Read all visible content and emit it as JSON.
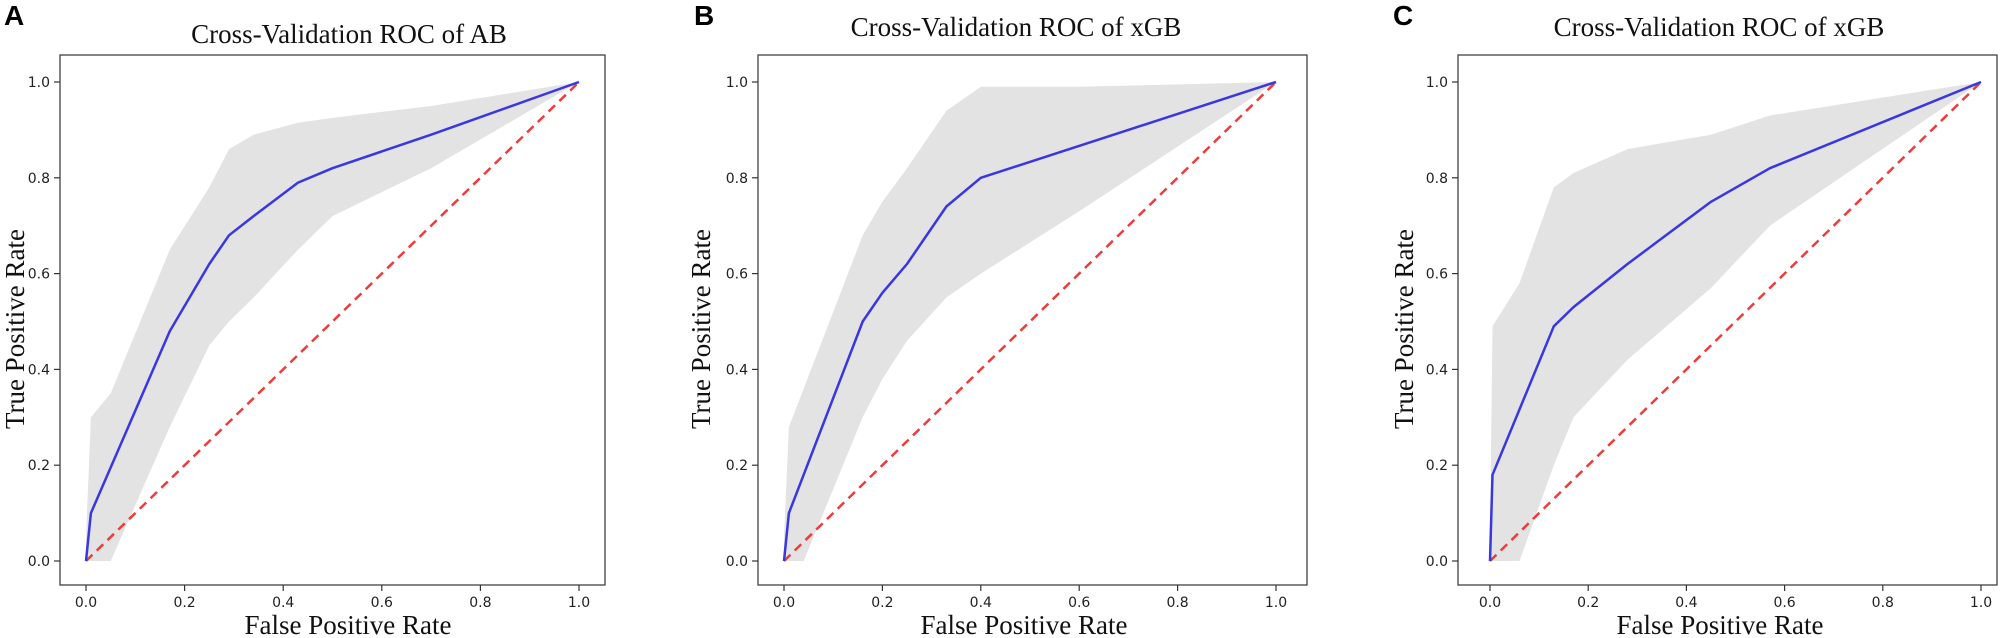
{
  "colors": {
    "mean_roc": "#3a36e0",
    "chance_line": "#ee3b3b",
    "band": "#e3e3e3"
  },
  "chart_data": [
    {
      "type": "line",
      "panel": "A",
      "title": "Cross-Validation ROC of AB",
      "xlabel": "False Positive Rate",
      "ylabel": "True Positive Rate",
      "xlim": [
        0,
        1
      ],
      "ylim": [
        0,
        1
      ],
      "xticks": [
        "0.0",
        "0.2",
        "0.4",
        "0.6",
        "0.8",
        "1.0"
      ],
      "yticks": [
        "0.0",
        "0.2",
        "0.4",
        "0.6",
        "0.8",
        "1.0"
      ],
      "series": [
        {
          "name": "mean ROC",
          "x": [
            0,
            0.01,
            0.17,
            0.25,
            0.29,
            0.34,
            0.43,
            0.5,
            0.7,
            1.0
          ],
          "y": [
            0,
            0.1,
            0.48,
            0.62,
            0.68,
            0.72,
            0.79,
            0.82,
            0.89,
            1.0
          ]
        },
        {
          "name": "chance",
          "x": [
            0,
            1
          ],
          "y": [
            0,
            1
          ]
        }
      ],
      "band": {
        "x": [
          0,
          0.01,
          0.05,
          0.17,
          0.25,
          0.29,
          0.34,
          0.43,
          0.5,
          0.7,
          1.0
        ],
        "upper": [
          0.05,
          0.3,
          0.35,
          0.65,
          0.78,
          0.86,
          0.89,
          0.915,
          0.925,
          0.95,
          1.0
        ],
        "lower": [
          0,
          0,
          0,
          0.28,
          0.45,
          0.5,
          0.55,
          0.65,
          0.72,
          0.82,
          1.0
        ]
      }
    },
    {
      "type": "line",
      "panel": "B",
      "title": "Cross-Validation ROC of xGB",
      "xlabel": "False Positive Rate",
      "ylabel": "True Positive Rate",
      "xlim": [
        0,
        1
      ],
      "ylim": [
        0,
        1
      ],
      "xticks": [
        "0.0",
        "0.2",
        "0.4",
        "0.6",
        "0.8",
        "1.0"
      ],
      "yticks": [
        "0.0",
        "0.2",
        "0.4",
        "0.6",
        "0.8",
        "1.0"
      ],
      "series": [
        {
          "name": "mean ROC",
          "x": [
            0,
            0.01,
            0.16,
            0.2,
            0.25,
            0.33,
            0.4,
            1.0
          ],
          "y": [
            0,
            0.1,
            0.5,
            0.56,
            0.62,
            0.74,
            0.8,
            1.0
          ]
        },
        {
          "name": "chance",
          "x": [
            0,
            1
          ],
          "y": [
            0,
            1
          ]
        }
      ],
      "band": {
        "x": [
          0,
          0.01,
          0.04,
          0.16,
          0.2,
          0.25,
          0.33,
          0.4,
          0.6,
          1.0
        ],
        "upper": [
          0.05,
          0.28,
          0.36,
          0.68,
          0.75,
          0.82,
          0.94,
          0.99,
          0.99,
          1.0
        ],
        "lower": [
          0,
          0,
          0,
          0.3,
          0.38,
          0.46,
          0.55,
          0.6,
          0.73,
          1.0
        ]
      }
    },
    {
      "type": "line",
      "panel": "C",
      "title": "Cross-Validation ROC of xGB",
      "xlabel": "False Positive Rate",
      "ylabel": "True Positive Rate",
      "xlim": [
        0,
        1
      ],
      "ylim": [
        0,
        1
      ],
      "xticks": [
        "0.0",
        "0.2",
        "0.4",
        "0.6",
        "0.8",
        "1.0"
      ],
      "yticks": [
        "0.0",
        "0.2",
        "0.4",
        "0.6",
        "0.8",
        "1.0"
      ],
      "series": [
        {
          "name": "mean ROC",
          "x": [
            0,
            0.005,
            0.13,
            0.17,
            0.28,
            0.45,
            0.57,
            1.0
          ],
          "y": [
            0,
            0.18,
            0.49,
            0.53,
            0.62,
            0.75,
            0.82,
            1.0
          ]
        },
        {
          "name": "chance",
          "x": [
            0,
            1
          ],
          "y": [
            0,
            1
          ]
        }
      ],
      "band": {
        "x": [
          0,
          0.005,
          0.06,
          0.13,
          0.17,
          0.28,
          0.45,
          0.57,
          1.0
        ],
        "upper": [
          0.05,
          0.49,
          0.58,
          0.78,
          0.81,
          0.86,
          0.89,
          0.93,
          1.0
        ],
        "lower": [
          0,
          0,
          0,
          0.2,
          0.3,
          0.42,
          0.57,
          0.7,
          1.0
        ]
      }
    }
  ]
}
